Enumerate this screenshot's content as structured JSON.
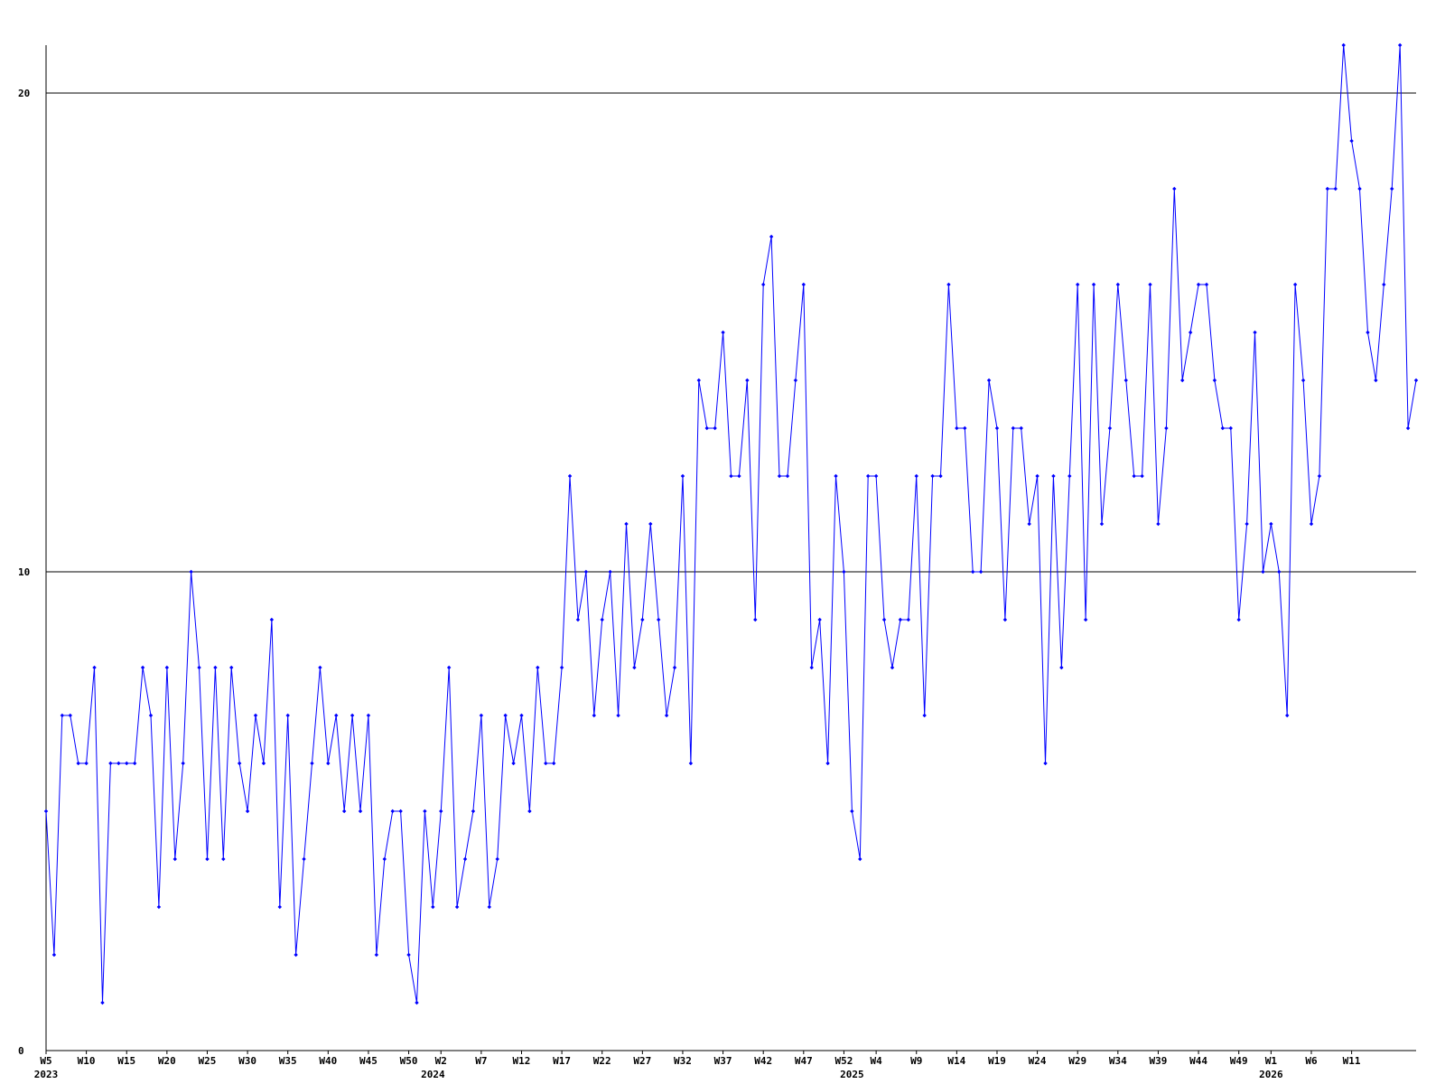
{
  "chart_data": {
    "type": "line",
    "grid": true,
    "ylim": [
      0,
      21
    ],
    "yticks": [
      0,
      10,
      20
    ],
    "categories": [
      "W5",
      null,
      null,
      null,
      null,
      "W10",
      null,
      null,
      null,
      null,
      "W15",
      null,
      null,
      null,
      null,
      "W20",
      null,
      null,
      null,
      null,
      "W25",
      null,
      null,
      null,
      null,
      "W30",
      null,
      null,
      null,
      null,
      "W35",
      null,
      null,
      null,
      null,
      "W40",
      null,
      null,
      null,
      null,
      "W45",
      null,
      null,
      null,
      null,
      "W50",
      null,
      null,
      null,
      "W2",
      null,
      null,
      null,
      null,
      "W7",
      null,
      null,
      null,
      null,
      "W12",
      null,
      null,
      null,
      null,
      "W17",
      null,
      null,
      null,
      null,
      "W22",
      null,
      null,
      null,
      null,
      "W27",
      null,
      null,
      null,
      null,
      "W32",
      null,
      null,
      null,
      null,
      "W37",
      null,
      null,
      null,
      null,
      "W42",
      null,
      null,
      null,
      null,
      "W47",
      null,
      null,
      null,
      null,
      "W52",
      null,
      null,
      null,
      "W4",
      null,
      null,
      null,
      null,
      "W9",
      null,
      null,
      null,
      null,
      "W14",
      null,
      null,
      null,
      null,
      "W19",
      null,
      null,
      null,
      null,
      "W24",
      null,
      null,
      null,
      null,
      "W29",
      null,
      null,
      null,
      null,
      "W34",
      null,
      null,
      null,
      null,
      "W39",
      null,
      null,
      null,
      null,
      "W44",
      null,
      null,
      null,
      null,
      "W49",
      null,
      null,
      null,
      "W1",
      null,
      null,
      null,
      null,
      "W6",
      null,
      null,
      null,
      null,
      "W11",
      null,
      null,
      null,
      null,
      null,
      null,
      null,
      null
    ],
    "category_years": [
      "2023",
      null,
      null,
      null,
      null,
      null,
      null,
      null,
      null,
      null,
      null,
      null,
      null,
      null,
      null,
      null,
      null,
      null,
      null,
      null,
      null,
      null,
      null,
      null,
      null,
      null,
      null,
      null,
      null,
      null,
      null,
      null,
      null,
      null,
      null,
      null,
      null,
      null,
      null,
      null,
      null,
      null,
      null,
      null,
      null,
      null,
      null,
      null,
      "2024",
      null,
      null,
      null,
      null,
      null,
      null,
      null,
      null,
      null,
      null,
      null,
      null,
      null,
      null,
      null,
      null,
      null,
      null,
      null,
      null,
      null,
      null,
      null,
      null,
      null,
      null,
      null,
      null,
      null,
      null,
      null,
      null,
      null,
      null,
      null,
      null,
      null,
      null,
      null,
      null,
      null,
      null,
      null,
      null,
      null,
      null,
      null,
      null,
      null,
      null,
      null,
      "2025",
      null,
      null,
      null,
      null,
      null,
      null,
      null,
      null,
      null,
      null,
      null,
      null,
      null,
      null,
      null,
      null,
      null,
      null,
      null,
      null,
      null,
      null,
      null,
      null,
      null,
      null,
      null,
      null,
      null,
      null,
      null,
      null,
      null,
      null,
      null,
      null,
      null,
      null,
      null,
      null,
      null,
      null,
      null,
      null,
      null,
      null,
      null,
      null,
      null,
      null,
      null,
      "2026",
      null,
      null,
      null,
      null,
      null,
      null,
      null,
      null,
      null,
      null,
      null,
      null,
      null,
      null,
      null,
      null,
      null,
      null
    ],
    "series": [
      {
        "color": "#0000ff",
        "values": [
          5,
          2,
          7,
          7,
          6,
          6,
          8,
          1,
          6,
          6,
          6,
          6,
          8,
          7,
          3,
          8,
          4,
          6,
          10,
          8,
          4,
          8,
          4,
          8,
          6,
          5,
          7,
          6,
          9,
          3,
          7,
          2,
          4,
          6,
          8,
          6,
          7,
          5,
          7,
          5,
          7,
          2,
          4,
          5,
          5,
          2,
          1,
          5,
          3,
          5,
          8,
          3,
          4,
          5,
          7,
          3,
          4,
          7,
          6,
          7,
          5,
          8,
          6,
          6,
          8,
          12,
          9,
          10,
          7,
          9,
          10,
          7,
          11,
          8,
          9,
          11,
          9,
          7,
          8,
          12,
          6,
          14,
          13,
          13,
          15,
          12,
          12,
          14,
          9,
          16,
          17,
          12,
          12,
          14,
          16,
          8,
          9,
          6,
          12,
          10,
          5,
          4,
          12,
          12,
          9,
          8,
          9,
          9,
          12,
          7,
          12,
          12,
          16,
          13,
          13,
          10,
          10,
          14,
          13,
          9,
          13,
          13,
          11,
          12,
          6,
          12,
          8,
          12,
          16,
          9,
          16,
          11,
          13,
          16,
          14,
          12,
          12,
          16,
          11,
          13,
          18,
          14,
          15,
          16,
          16,
          14,
          13,
          13,
          9,
          11,
          15,
          10,
          11,
          10,
          7,
          16,
          14,
          11,
          12,
          18,
          18,
          21,
          19,
          18,
          15,
          14,
          16,
          18,
          21,
          13,
          14
        ]
      }
    ]
  }
}
